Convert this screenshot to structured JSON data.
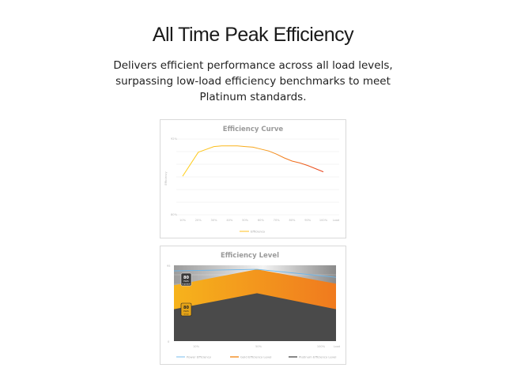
{
  "header": {
    "title": "All Time Peak Efficiency",
    "description_lines": [
      "Delivers efficient performance across all load levels,",
      "surpassing low-load efficiency benchmarks to meet",
      "Platinum standards."
    ]
  },
  "chart_data": [
    {
      "type": "line",
      "title": "Efficiency Curve",
      "ylabel": "Efficiency",
      "xlabel": "Load",
      "categories": [
        "10%",
        "20%",
        "30%",
        "40%",
        "50%",
        "60%",
        "70%",
        "80%",
        "90%",
        "100%"
      ],
      "y_tick_labels": [
        "92%",
        "80%"
      ],
      "ylim": [
        80,
        92
      ],
      "series": [
        {
          "name": "Efficiency",
          "x": [
            0,
            1,
            2,
            2.5,
            3,
            3.5,
            4,
            4.5,
            5,
            5.5,
            6,
            6.5,
            7,
            7.5,
            8,
            8.5,
            9
          ],
          "values": [
            86.1,
            89.9,
            90.8,
            90.9,
            90.9,
            90.9,
            90.8,
            90.7,
            90.4,
            90.1,
            89.6,
            89.0,
            88.5,
            88.2,
            87.8,
            87.3,
            86.8
          ]
        }
      ],
      "colors": {
        "start": "#ffd21f",
        "mid": "#f7a21b",
        "end": "#e8401c"
      },
      "grid": true,
      "legend": "bottom-center"
    },
    {
      "type": "area",
      "title": "Efficiency Level",
      "xlabel": "Load",
      "categories": [
        "10%",
        "50%",
        "100%"
      ],
      "y_tick_labels": [
        "95",
        "0"
      ],
      "badges": [
        {
          "line1": "80",
          "line2": "PLUS",
          "line3": "PLATINUM",
          "color": "#3a3a3a"
        },
        {
          "line1": "80",
          "line2": "PLUS",
          "line3": "GOLD",
          "color": "#e6a417"
        }
      ],
      "series": [
        {
          "name": "Power Efficiency",
          "color": "#6bb6ea",
          "values": [
            88,
            90,
            80
          ]
        },
        {
          "name": "Gold Efficiency Level",
          "color": "#f28a1c",
          "values": [
            70,
            90,
            72
          ]
        },
        {
          "name": "Platinum Efficiency Level",
          "color": "#555555",
          "values": [
            40,
            60,
            40
          ]
        }
      ],
      "legend": "bottom-center"
    }
  ]
}
